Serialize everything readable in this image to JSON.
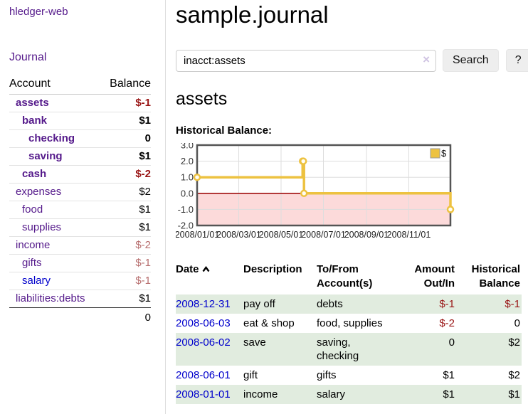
{
  "sidebar": {
    "brand": "hledger-web",
    "journal_link": "Journal",
    "accounts_table": {
      "headers": {
        "account": "Account",
        "balance": "Balance"
      },
      "rows": [
        {
          "name": "assets",
          "balance": "$-1"
        },
        {
          "name": "bank",
          "balance": "$1"
        },
        {
          "name": "checking",
          "balance": "0"
        },
        {
          "name": "saving",
          "balance": "$1"
        },
        {
          "name": "cash",
          "balance": "$-2"
        },
        {
          "name": "expenses",
          "balance": "$2"
        },
        {
          "name": "food",
          "balance": "$1"
        },
        {
          "name": "supplies",
          "balance": "$1"
        },
        {
          "name": "income",
          "balance": "$-2"
        },
        {
          "name": "gifts",
          "balance": "$-1"
        },
        {
          "name": "salary",
          "balance": "$-1"
        },
        {
          "name": "liabilities:debts",
          "balance": "$1"
        }
      ],
      "total": "0"
    }
  },
  "main": {
    "title": "sample.journal",
    "search": {
      "value": "inacct:assets",
      "clear_icon": "×",
      "search_button": "Search",
      "help_button": "?"
    },
    "account_heading": "assets",
    "chart_label": "Historical Balance:",
    "register": {
      "headers": {
        "date": "Date",
        "description": "Description",
        "accounts": "To/From Account(s)",
        "amount": "Amount Out/In",
        "balance": "Historical Balance"
      },
      "rows": [
        {
          "date": "2008-12-31",
          "description": "pay off",
          "accounts": "debts",
          "amount": "$-1",
          "balance": "$-1"
        },
        {
          "date": "2008-06-03",
          "description": "eat & shop",
          "accounts": "food, supplies",
          "amount": "$-2",
          "balance": "0"
        },
        {
          "date": "2008-06-02",
          "description": "save",
          "accounts": "saving, checking",
          "amount": "0",
          "balance": "$2"
        },
        {
          "date": "2008-06-01",
          "description": "gift",
          "accounts": "gifts",
          "amount": "$1",
          "balance": "$2"
        },
        {
          "date": "2008-01-01",
          "description": "income",
          "accounts": "salary",
          "amount": "$1",
          "balance": "$1"
        }
      ]
    }
  },
  "chart_data": {
    "type": "line",
    "title": "Historical Balance:",
    "step": true,
    "series": [
      {
        "name": "$",
        "points": [
          [
            "2008-01-01",
            1
          ],
          [
            "2008-06-01",
            2
          ],
          [
            "2008-06-02",
            2
          ],
          [
            "2008-06-03",
            0
          ],
          [
            "2008-12-31",
            -1
          ]
        ]
      }
    ],
    "x_range": [
      "2008-01-01",
      "2008-12-31"
    ],
    "x_ticks": [
      {
        "date": "2008-01-01",
        "label": "2008/01/01"
      },
      {
        "date": "2008-03-01",
        "label": "2008/03/01"
      },
      {
        "date": "2008-05-01",
        "label": "2008/05/01"
      },
      {
        "date": "2008-07-01",
        "label": "2008/07/01"
      },
      {
        "date": "2008-09-01",
        "label": "2008/09/01"
      },
      {
        "date": "2008-11-01",
        "label": "2008/11/01"
      }
    ],
    "y_ticks": [
      {
        "value": 3,
        "label": "3.0"
      },
      {
        "value": 2,
        "label": "2.0"
      },
      {
        "value": 1,
        "label": "1.0"
      },
      {
        "value": 0,
        "label": "0.0"
      },
      {
        "value": -1,
        "label": "-1.0"
      },
      {
        "value": -2,
        "label": "-2.0"
      }
    ],
    "ylim": [
      -2,
      3
    ],
    "grid": true,
    "legend": {
      "position": "top-right",
      "label": "$"
    },
    "colors": {
      "line": "#edc240",
      "marker_fill": "#fffdf4",
      "negative_region": "#fcdada",
      "zero_line": "#990000",
      "grid": "#dddddd",
      "border": "#545454"
    }
  },
  "colors": {
    "link_purple": "#551a8b",
    "link_blue": "#0000cc",
    "negative_strong": "#991414",
    "negative_muted": "#b76e6e",
    "row_green": "#e1ecdf"
  }
}
